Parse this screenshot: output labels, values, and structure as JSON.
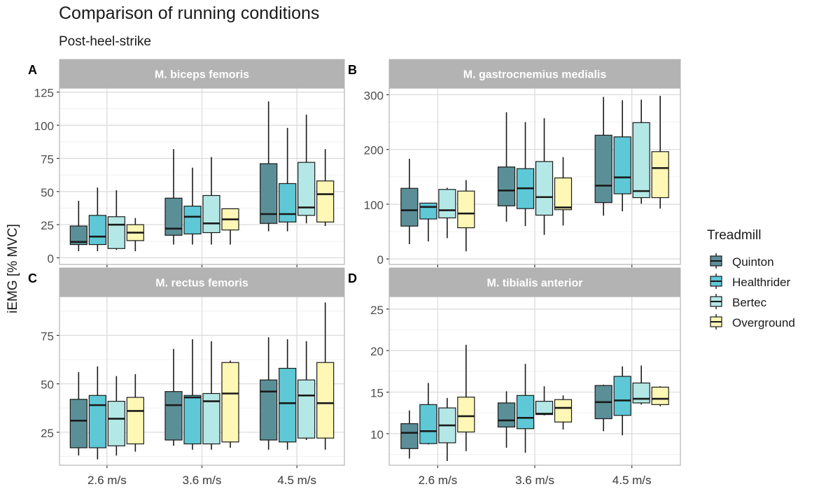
{
  "title": "Comparison of running conditions",
  "subtitle": "Post-heel-strike",
  "ylabel": "iEMG [% MVC]",
  "legend": {
    "title": "Treadmill",
    "position": "right",
    "items": [
      {
        "name": "Quinton",
        "color": "#5b8f98"
      },
      {
        "name": "Healthrider",
        "color": "#5ec8d6"
      },
      {
        "name": "Bertec",
        "color": "#b3e8e6"
      },
      {
        "name": "Overground",
        "color": "#fff7b5"
      }
    ]
  },
  "chart_data": [
    {
      "type": "box",
      "tag": "A",
      "title": "M. biceps femoris",
      "categories": [
        "2.6 m/s",
        "3.6 m/s",
        "4.5 m/s"
      ],
      "ylim": [
        -5,
        128
      ],
      "yticks": [
        0,
        25,
        50,
        75,
        100,
        125
      ],
      "series": [
        {
          "name": "Quinton",
          "boxes": [
            {
              "min": 5,
              "q1": 10,
              "median": 12,
              "q3": 24,
              "max": 43
            },
            {
              "min": 10,
              "q1": 17,
              "median": 22,
              "q3": 45,
              "max": 82
            },
            {
              "min": 20,
              "q1": 26,
              "median": 33,
              "q3": 71,
              "max": 118
            }
          ]
        },
        {
          "name": "Healthrider",
          "boxes": [
            {
              "min": 5,
              "q1": 10,
              "median": 16,
              "q3": 32,
              "max": 53
            },
            {
              "min": 10,
              "q1": 18,
              "median": 31,
              "q3": 39,
              "max": 68
            },
            {
              "min": 20,
              "q1": 27,
              "median": 33,
              "q3": 56,
              "max": 98
            }
          ]
        },
        {
          "name": "Bertec",
          "boxes": [
            {
              "min": 6,
              "q1": 7,
              "median": 25,
              "q3": 31,
              "max": 51
            },
            {
              "min": 10,
              "q1": 19,
              "median": 26,
              "q3": 47,
              "max": 76
            },
            {
              "min": 26,
              "q1": 32,
              "median": 38,
              "q3": 72,
              "max": 108
            }
          ]
        },
        {
          "name": "Overground",
          "boxes": [
            {
              "min": 5,
              "q1": 13,
              "median": 19,
              "q3": 25,
              "max": 30
            },
            {
              "min": 10,
              "q1": 21,
              "median": 29,
              "q3": 37,
              "max": 37
            },
            {
              "min": 24,
              "q1": 27,
              "median": 48,
              "q3": 58,
              "max": 82
            }
          ]
        }
      ]
    },
    {
      "type": "box",
      "tag": "B",
      "title": "M. gastrocnemius medialis",
      "categories": [
        "2.6 m/s",
        "3.6 m/s",
        "4.5 m/s"
      ],
      "ylim": [
        -10,
        312
      ],
      "yticks": [
        0,
        100,
        200,
        300
      ],
      "series": [
        {
          "name": "Quinton",
          "boxes": [
            {
              "min": 27,
              "q1": 60,
              "median": 89,
              "q3": 129,
              "max": 183
            },
            {
              "min": 68,
              "q1": 97,
              "median": 125,
              "q3": 168,
              "max": 268
            },
            {
              "min": 79,
              "q1": 103,
              "median": 134,
              "q3": 226,
              "max": 296
            }
          ]
        },
        {
          "name": "Healthrider",
          "boxes": [
            {
              "min": 32,
              "q1": 73,
              "median": 95,
              "q3": 102,
              "max": 102
            },
            {
              "min": 60,
              "q1": 92,
              "median": 129,
              "q3": 165,
              "max": 250
            },
            {
              "min": 87,
              "q1": 119,
              "median": 149,
              "q3": 223,
              "max": 290
            }
          ]
        },
        {
          "name": "Bertec",
          "boxes": [
            {
              "min": 38,
              "q1": 75,
              "median": 89,
              "q3": 127,
              "max": 130
            },
            {
              "min": 44,
              "q1": 80,
              "median": 113,
              "q3": 178,
              "max": 257
            },
            {
              "min": 101,
              "q1": 112,
              "median": 124,
              "q3": 249,
              "max": 291
            }
          ]
        },
        {
          "name": "Overground",
          "boxes": [
            {
              "min": 14,
              "q1": 57,
              "median": 83,
              "q3": 124,
              "max": 144
            },
            {
              "min": 61,
              "q1": 90,
              "median": 94,
              "q3": 148,
              "max": 186
            },
            {
              "min": 92,
              "q1": 112,
              "median": 166,
              "q3": 196,
              "max": 298
            }
          ]
        }
      ]
    },
    {
      "type": "box",
      "tag": "C",
      "title": "M. rectus femoris",
      "categories": [
        "2.6 m/s",
        "3.6 m/s",
        "4.5 m/s"
      ],
      "ylim": [
        8,
        95
      ],
      "yticks": [
        25,
        50,
        75
      ],
      "series": [
        {
          "name": "Quinton",
          "boxes": [
            {
              "min": 13,
              "q1": 17,
              "median": 31,
              "q3": 42,
              "max": 56
            },
            {
              "min": 18,
              "q1": 21,
              "median": 39,
              "q3": 46,
              "max": 68
            },
            {
              "min": 16,
              "q1": 21,
              "median": 46,
              "q3": 52,
              "max": 74
            }
          ]
        },
        {
          "name": "Healthrider",
          "boxes": [
            {
              "min": 11,
              "q1": 17,
              "median": 39,
              "q3": 44,
              "max": 59
            },
            {
              "min": 16,
              "q1": 19,
              "median": 43,
              "q3": 44,
              "max": 73
            },
            {
              "min": 16,
              "q1": 20,
              "median": 40,
              "q3": 58,
              "max": 73
            }
          ]
        },
        {
          "name": "Bertec",
          "boxes": [
            {
              "min": 13,
              "q1": 18,
              "median": 32,
              "q3": 41,
              "max": 54
            },
            {
              "min": 16,
              "q1": 19,
              "median": 41,
              "q3": 45,
              "max": 72
            },
            {
              "min": 21,
              "q1": 22,
              "median": 44,
              "q3": 52,
              "max": 72
            }
          ]
        },
        {
          "name": "Overground",
          "boxes": [
            {
              "min": 15,
              "q1": 19,
              "median": 36,
              "q3": 43,
              "max": 55
            },
            {
              "min": 17,
              "q1": 20,
              "median": 45,
              "q3": 61,
              "max": 62
            },
            {
              "min": 16,
              "q1": 22,
              "median": 40,
              "q3": 61,
              "max": 92
            }
          ]
        }
      ]
    },
    {
      "type": "box",
      "tag": "D",
      "title": "M. tibialis anterior",
      "categories": [
        "2.6 m/s",
        "3.6 m/s",
        "4.5 m/s"
      ],
      "ylim": [
        6.2,
        26.5
      ],
      "yticks": [
        10,
        15,
        20,
        25
      ],
      "series": [
        {
          "name": "Quinton",
          "boxes": [
            {
              "min": 7,
              "q1": 8.2,
              "median": 10.1,
              "q3": 11.2,
              "max": 12.8
            },
            {
              "min": 8.3,
              "q1": 10.8,
              "median": 11.6,
              "q3": 13.7,
              "max": 15.1
            },
            {
              "min": 10.3,
              "q1": 11.8,
              "median": 13.8,
              "q3": 15.8,
              "max": 15.9
            }
          ]
        },
        {
          "name": "Healthrider",
          "boxes": [
            {
              "min": 8.7,
              "q1": 8.8,
              "median": 10.3,
              "q3": 13.5,
              "max": 16.1
            },
            {
              "min": 7.7,
              "q1": 10.6,
              "median": 11.9,
              "q3": 14.6,
              "max": 18.4
            },
            {
              "min": 9.8,
              "q1": 12.2,
              "median": 14,
              "q3": 16.9,
              "max": 18.1
            }
          ]
        },
        {
          "name": "Bertec",
          "boxes": [
            {
              "min": 6.7,
              "q1": 8.9,
              "median": 11,
              "q3": 13.1,
              "max": 14.3
            },
            {
              "min": 12.2,
              "q1": 12.3,
              "median": 12.4,
              "q3": 13.9,
              "max": 15.7
            },
            {
              "min": 13.5,
              "q1": 13.7,
              "median": 14.2,
              "q3": 16.1,
              "max": 18.2
            }
          ]
        },
        {
          "name": "Overground",
          "boxes": [
            {
              "min": 7.9,
              "q1": 10.2,
              "median": 12.1,
              "q3": 14.4,
              "max": 20.7
            },
            {
              "min": 10.5,
              "q1": 11.4,
              "median": 13.1,
              "q3": 14.1,
              "max": 14.6
            },
            {
              "min": 13.3,
              "q1": 13.5,
              "median": 14.2,
              "q3": 15.6,
              "max": 15.7
            }
          ]
        }
      ]
    }
  ]
}
